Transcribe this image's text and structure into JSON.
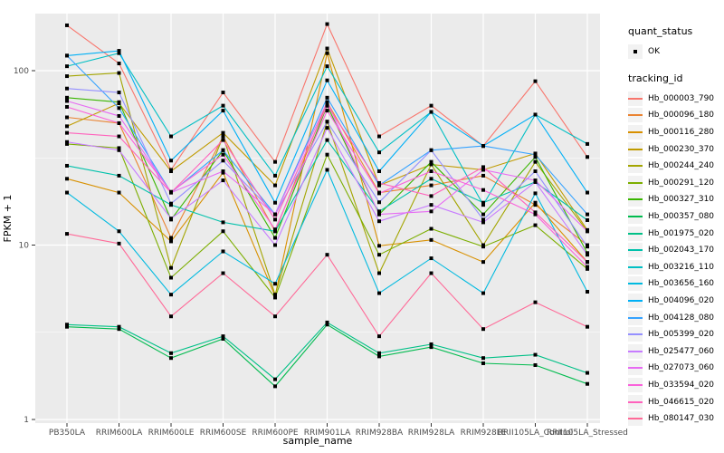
{
  "chart_data": {
    "type": "line",
    "title": "",
    "xlabel": "sample_name",
    "ylabel": "FPKM + 1",
    "y_scale": "log10",
    "ylim": [
      0.95,
      215
    ],
    "y_major_ticks": [
      1,
      10,
      100
    ],
    "y_tick_labels": [
      "1",
      "10",
      "100"
    ],
    "y_minor_ticks": [
      3.162,
      31.62
    ],
    "grid": true,
    "legend_position": "right",
    "panel_bg": "#EBEBEB",
    "grid_color": "#FFFFFF",
    "point_color": "#000000",
    "tick_label_color": "#4D4D4D",
    "categories": [
      "PB350LA",
      "RRIM600LA",
      "RRIM600LE",
      "RRIM600SE",
      "RRIM600PE",
      "RRIM901LA",
      "RRIM928BA",
      "RRIM928LA",
      "RRIM928LE",
      "RRII105LA_Control",
      "RRII105LA_Stressed"
    ],
    "series": [
      {
        "name": "Hb_000003_790",
        "color": "#F8766D",
        "values": [
          182,
          110,
          27,
          75,
          30,
          185,
          42,
          63,
          37,
          87,
          32
        ]
      },
      {
        "name": "Hb_000096_180",
        "color": "#EA8331",
        "values": [
          54,
          50,
          11,
          42,
          12,
          66,
          20,
          22,
          25,
          17,
          10
        ]
      },
      {
        "name": "Hb_000116_280",
        "color": "#D89000",
        "values": [
          24,
          20,
          10.5,
          26,
          5.1,
          126,
          9.9,
          10.7,
          8,
          17.5,
          8
        ]
      },
      {
        "name": "Hb_000230_370",
        "color": "#C09B00",
        "values": [
          48,
          65,
          26.5,
          44,
          22,
          134,
          22,
          29,
          27,
          33.5,
          12.2
        ]
      },
      {
        "name": "Hb_000244_240",
        "color": "#A3A500",
        "values": [
          93,
          97,
          7.4,
          42,
          5.2,
          51,
          6.9,
          29,
          10,
          30,
          12
        ]
      },
      {
        "name": "Hb_000291_120",
        "color": "#7CAE00",
        "values": [
          38,
          36,
          6.5,
          12,
          5,
          33,
          8.8,
          12.4,
          9.8,
          13,
          7.3
        ]
      },
      {
        "name": "Hb_000327_310",
        "color": "#39B600",
        "values": [
          70,
          66,
          14,
          35,
          11,
          63,
          15,
          30,
          15,
          32,
          9
        ]
      },
      {
        "name": "Hb_000357_080",
        "color": "#00BB4E",
        "values": [
          3.4,
          3.3,
          2.25,
          2.9,
          1.55,
          3.5,
          2.3,
          2.6,
          2.1,
          2.05,
          1.6
        ]
      },
      {
        "name": "Hb_001975_020",
        "color": "#00C087",
        "values": [
          3.5,
          3.4,
          2.4,
          3,
          1.7,
          3.6,
          2.4,
          2.7,
          2.25,
          2.35,
          1.85
        ]
      },
      {
        "name": "Hb_002043_170",
        "color": "#00C1AB",
        "values": [
          28.5,
          25,
          17,
          13.5,
          12,
          40,
          15.6,
          24,
          17.5,
          23,
          13.9
        ]
      },
      {
        "name": "Hb_003216_110",
        "color": "#00BFC4",
        "values": [
          106,
          126,
          42,
          63,
          25,
          106,
          34,
          58,
          17,
          56,
          38
        ]
      },
      {
        "name": "Hb_003656_160",
        "color": "#00BAE0",
        "values": [
          20,
          12,
          5.2,
          9.2,
          6,
          27,
          5.3,
          8.4,
          5.3,
          19.8,
          5.4
        ]
      },
      {
        "name": "Hb_004096_020",
        "color": "#00B0F6",
        "values": [
          122,
          130,
          30.5,
          59,
          17.5,
          88,
          26.5,
          58,
          37,
          56,
          20
        ]
      },
      {
        "name": "Hb_004128_080",
        "color": "#35A2FF",
        "values": [
          122,
          61,
          20,
          35,
          15,
          70,
          22,
          35,
          37,
          33,
          15
        ]
      },
      {
        "name": "Hb_005399_020",
        "color": "#9590FF",
        "values": [
          79,
          75,
          17.3,
          30.5,
          15,
          51,
          17.6,
          35,
          14,
          26.5,
          9.8
        ]
      },
      {
        "name": "Hb_025477_060",
        "color": "#C77CFF",
        "values": [
          39,
          35,
          14.2,
          23.5,
          10,
          47,
          13.7,
          17,
          13.5,
          23,
          8.8
        ]
      },
      {
        "name": "Hb_027073_060",
        "color": "#E76BF3",
        "values": [
          67,
          55,
          20,
          26.5,
          15,
          66,
          15,
          15.6,
          27,
          23.5,
          12
        ]
      },
      {
        "name": "Hb_033594_020",
        "color": "#FA62DB",
        "values": [
          62,
          50,
          20.2,
          33,
          12.3,
          59,
          19.8,
          26.5,
          20.7,
          15,
          7.5
        ]
      },
      {
        "name": "Hb_046615_020",
        "color": "#FF62BC",
        "values": [
          44,
          42,
          20,
          40,
          14,
          63,
          22.7,
          19.1,
          28,
          15.4,
          8
        ]
      },
      {
        "name": "Hb_080147_030",
        "color": "#FF6A98",
        "values": [
          11.6,
          10.2,
          3.9,
          6.9,
          3.9,
          8.8,
          3,
          6.9,
          3.3,
          4.7,
          3.4
        ]
      }
    ],
    "legend": {
      "quant_status_title": "quant_status",
      "quant_status_items": [
        "OK"
      ],
      "tracking_id_title": "tracking_id"
    }
  }
}
